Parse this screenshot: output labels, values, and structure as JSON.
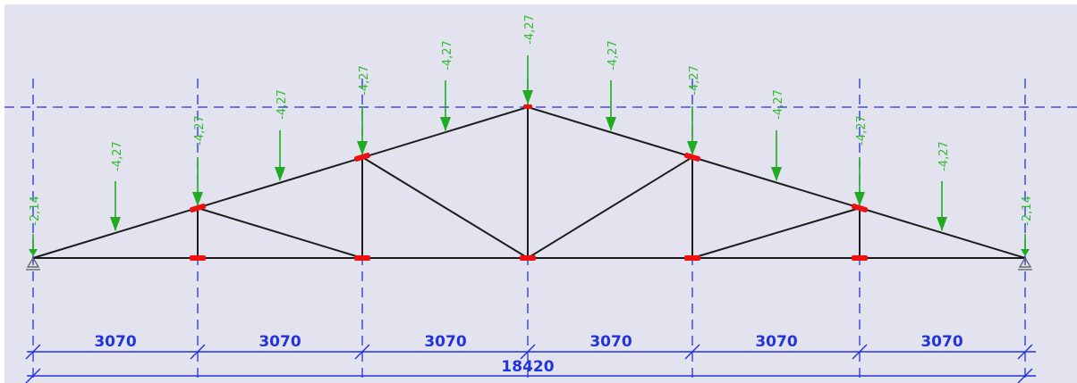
{
  "colors": {
    "background": "#e2e3ee",
    "frame": "#ffffff",
    "member": "#1c1c1c",
    "axis": "#2233dd",
    "load": "#22aa22",
    "load_label": "#33bb33",
    "node": "#ee1111",
    "dimension": "#2233dd",
    "support": "#666666"
  },
  "icons": {
    "support_left": "pin-support-icon",
    "support_right": "pin-support-icon"
  },
  "loads": {
    "end": "-2,14",
    "panel_point": "-4,27",
    "mid_span": "-4,27",
    "ridge": "-4,27"
  },
  "dimensions": {
    "panels": [
      "3070",
      "3070",
      "3070",
      "3070",
      "3070",
      "3070"
    ],
    "total": "18420"
  }
}
